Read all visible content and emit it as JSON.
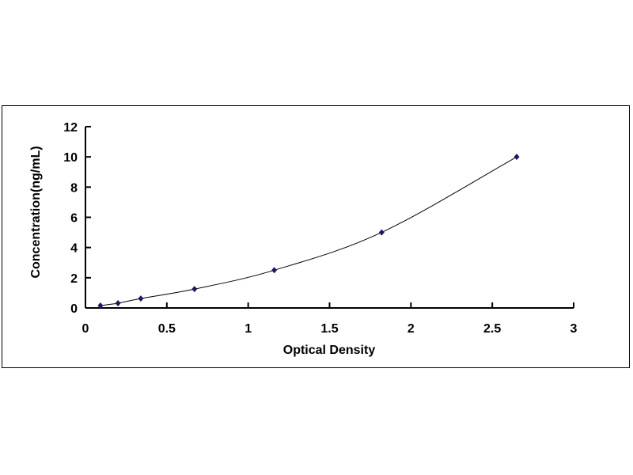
{
  "chart_data": {
    "type": "scatter",
    "title": "",
    "xlabel": "Optical Density",
    "ylabel": "Concentration(ng/mL)",
    "xlim": [
      0,
      3
    ],
    "ylim": [
      0,
      12
    ],
    "xticks": [
      "0",
      "0.5",
      "1",
      "1.5",
      "2",
      "2.5",
      "3"
    ],
    "yticks": [
      "0",
      "2",
      "4",
      "6",
      "8",
      "10",
      "12"
    ],
    "grid": false,
    "legend": "none",
    "trendline": "smooth curve",
    "series": [
      {
        "x": [
          0.092,
          0.2,
          0.34,
          0.67,
          1.16,
          1.82,
          2.65
        ],
        "y": [
          0.156,
          0.312,
          0.625,
          1.25,
          2.5,
          5,
          10
        ]
      }
    ],
    "colors": {
      "marker": "#1a1a5e",
      "line": "#000000"
    }
  }
}
